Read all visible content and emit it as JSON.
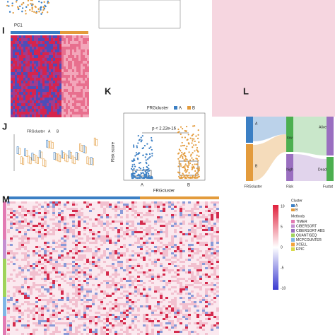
{
  "panels": {
    "top": {
      "x_label": "PC1"
    },
    "i": {
      "letter": "I"
    },
    "j": {
      "letter": "J",
      "legend_title": "FRGcluster",
      "legend": [
        "A",
        "B"
      ]
    },
    "k": {
      "letter": "K",
      "legend_title": "FRGcluster",
      "legend": [
        "A",
        "B"
      ],
      "p_value": "p < 2.22e-16",
      "y_label": "Risk score",
      "x_label": "FRGcluster",
      "categories": [
        "A",
        "B"
      ]
    },
    "l": {
      "letter": "L",
      "axes": [
        "FRGcluster",
        "Risk",
        "Fustat"
      ],
      "nodes": [
        "A",
        "B",
        "low",
        "high",
        "Alive",
        "Dead"
      ]
    },
    "m": {
      "letter": "M",
      "cluster_title": "Cluster",
      "clusters": [
        "A",
        "B"
      ],
      "methods_title": "Methods",
      "methods": [
        "TIMER",
        "CIBERSORT",
        "CIBERSORT-ABS",
        "QUANTISEQ",
        "MCPCOUNTER",
        "XCELL",
        "EPIC"
      ],
      "scale": [
        "10",
        "5",
        "0",
        "-5",
        "-10"
      ]
    }
  }
}
